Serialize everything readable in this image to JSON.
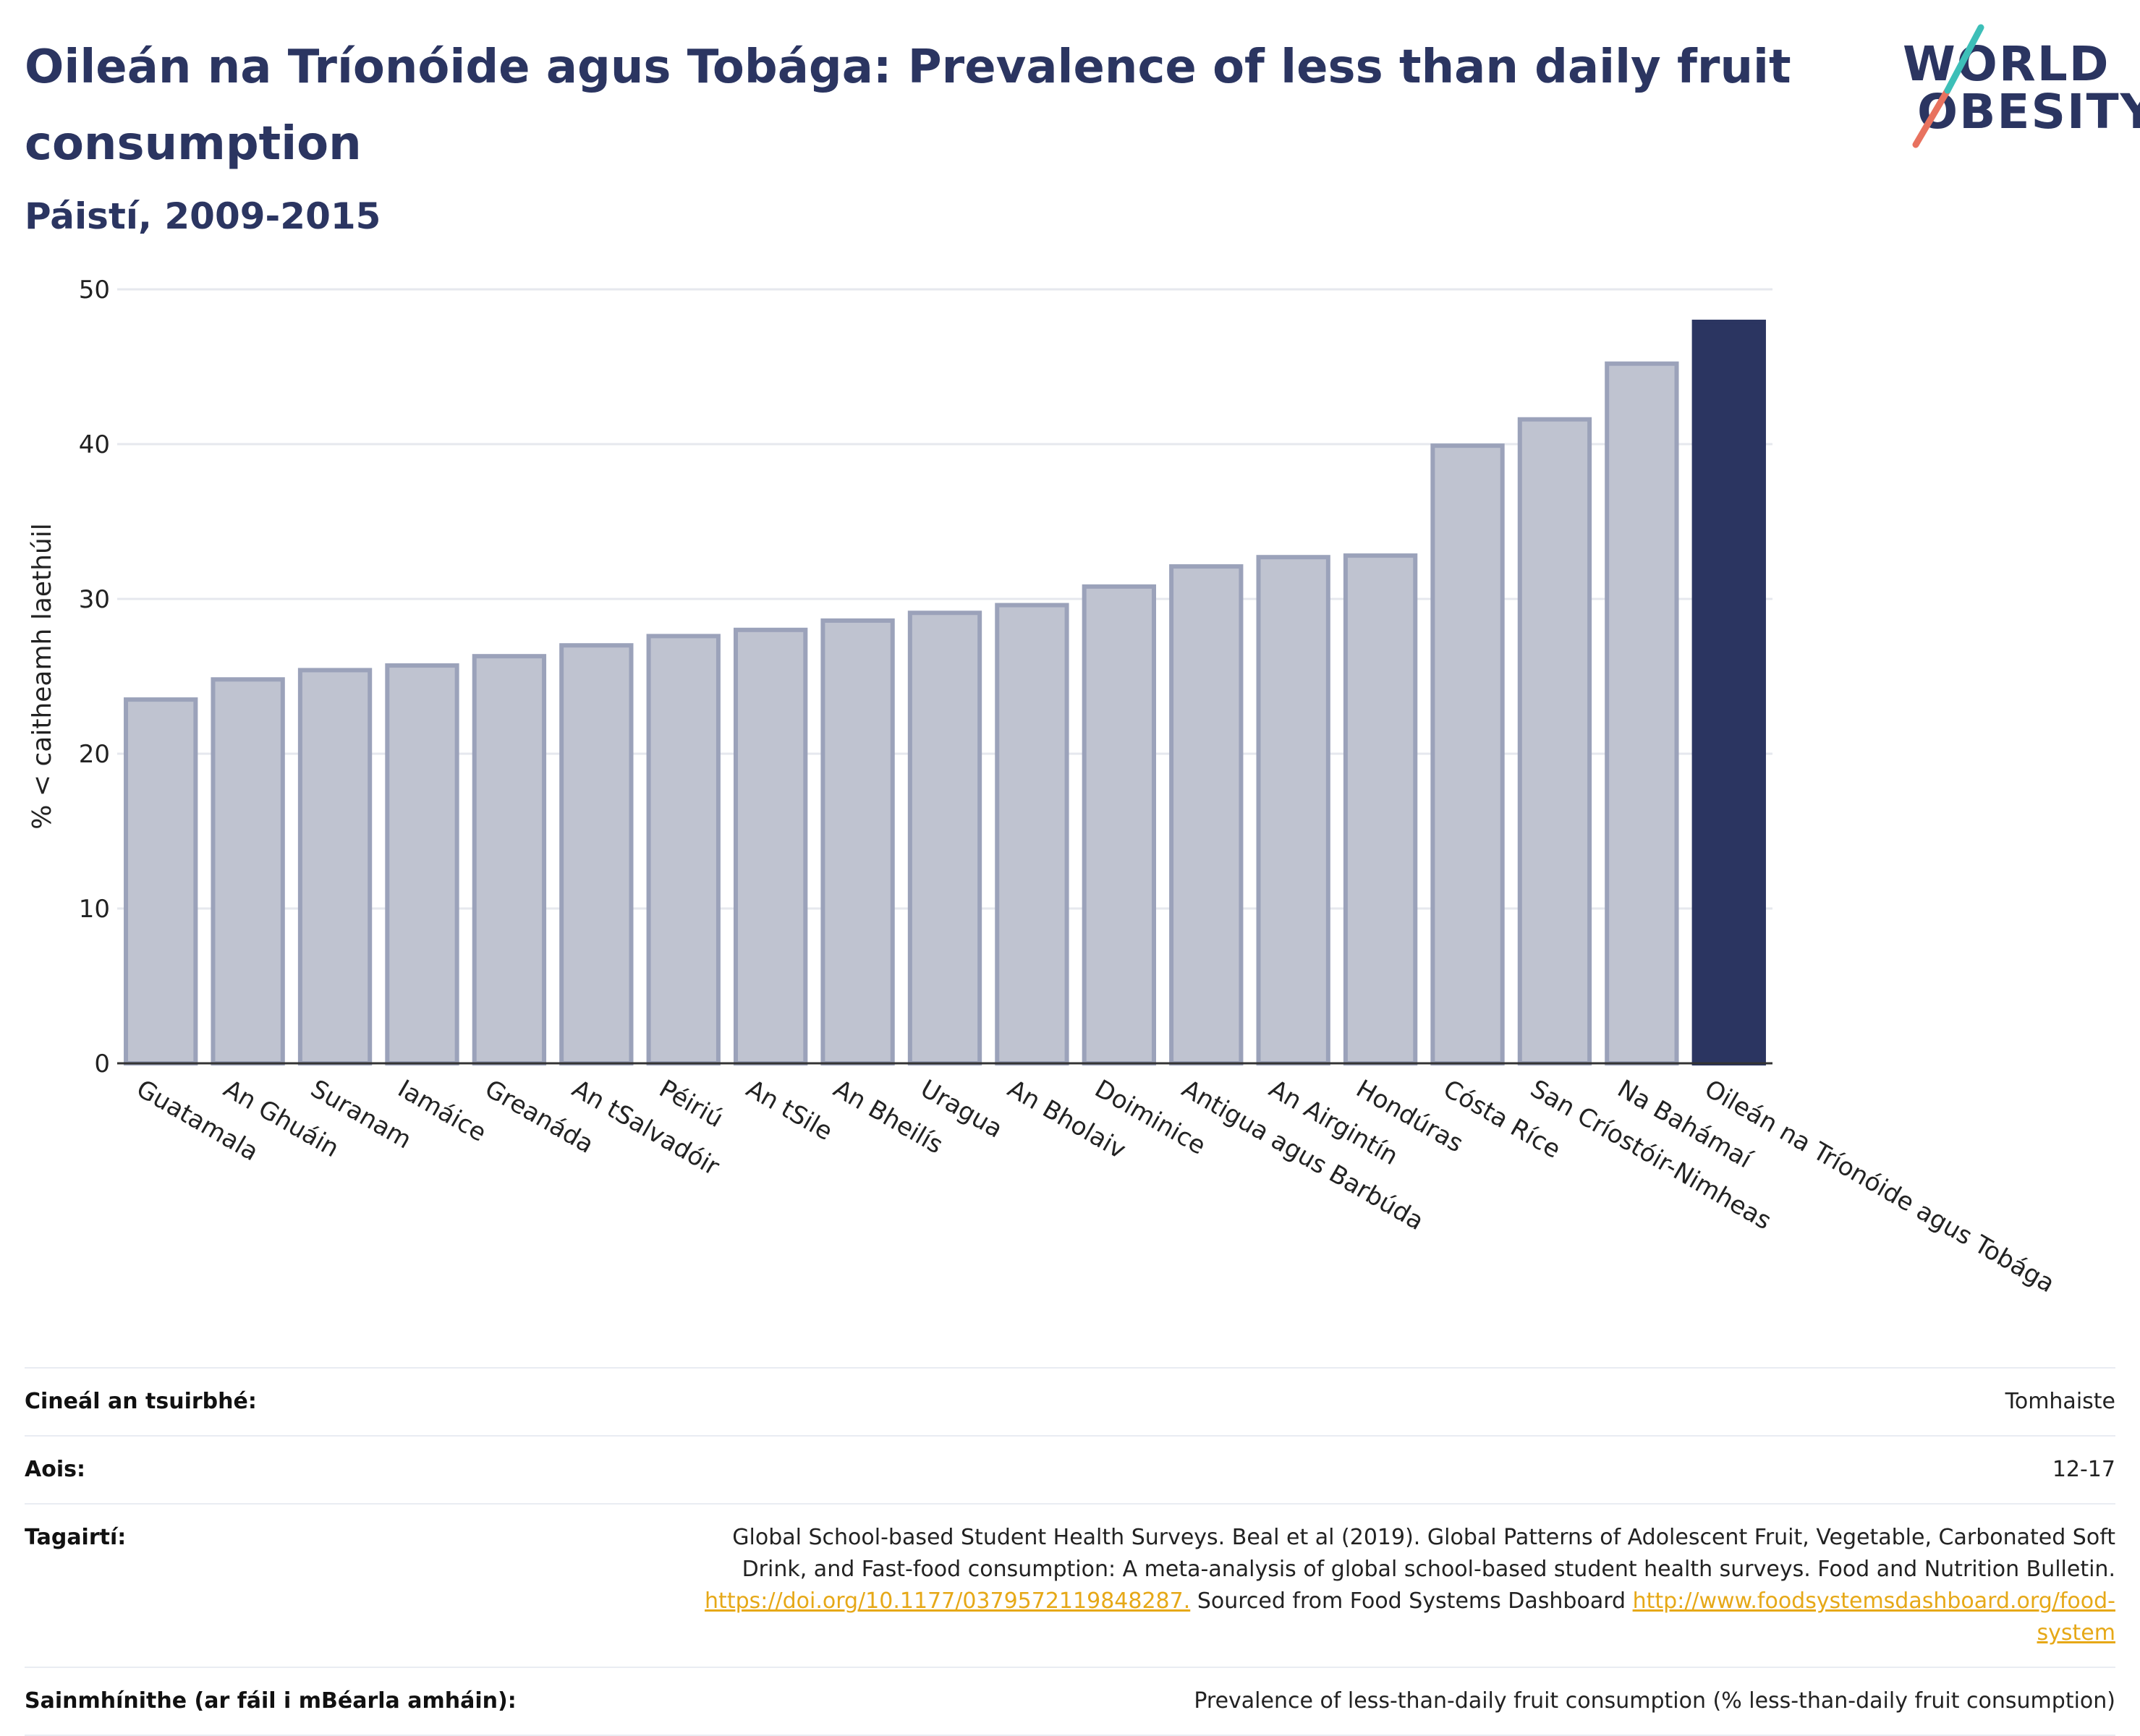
{
  "header": {
    "title": "Oileán na Tríonóide agus Tobága: Prevalence of less than daily fruit consumption",
    "subtitle": "Páistí, 2009-2015"
  },
  "logo": {
    "line1": "WORLD",
    "line2": "OBESITY",
    "slash_colors": [
      "#e8725f",
      "#3dbfb8"
    ]
  },
  "chart_data": {
    "type": "bar",
    "ylabel": "% < caitheamh laethúil",
    "ylim": [
      0,
      50
    ],
    "yticks": [
      0,
      10,
      20,
      30,
      40,
      50
    ],
    "grid": true,
    "highlight_index": 18,
    "colors": {
      "bar": "#bfc3d0",
      "bar_edge": "#9ba2ba",
      "highlight": "#2b3561"
    },
    "categories": [
      "Guatamala",
      "An Ghuáin",
      "Suranam",
      "Iamáice",
      "Greanáda",
      "An tSalvadóir",
      "Péiriú",
      "An tSile",
      "An Bheilís",
      "Uragua",
      "An Bholaiv",
      "Doiminice",
      "Antigua agus Barbúda",
      "An Airgintín",
      "Hondúras",
      "Cósta Ríce",
      "San Críostóir-Nimheas",
      "Na Bahámaí",
      "Oileán na Tríonóide agus Tobága"
    ],
    "values": [
      23.5,
      24.8,
      25.4,
      25.7,
      26.3,
      27.0,
      27.6,
      28.0,
      28.6,
      29.1,
      29.6,
      30.8,
      32.1,
      32.7,
      32.8,
      39.9,
      41.6,
      45.2,
      47.9
    ]
  },
  "meta": {
    "survey_type_label": "Cineál an tsuirbhé:",
    "survey_type_value": "Tomhaiste",
    "age_label": "Aois:",
    "age_value": "12-17",
    "references_label": "Tagairtí:",
    "references_text": "Global School-based Student Health Surveys. Beal et al (2019). Global Patterns of Adolescent Fruit, Vegetable, Carbonated Soft Drink, and Fast-food consumption: A meta-analysis of global school-based student health surveys. Food and Nutrition Bulletin.",
    "references_link1": "https://doi.org/10.1177/0379572119848287.",
    "references_mid": "Sourced from Food Systems Dashboard",
    "references_link2": "http://www.foodsystemsdashboard.org/food-system",
    "definitions_label": "Sainmhínithe (ar fáil i mBéarla amháin):",
    "definitions_value": "Prevalence of less-than-daily fruit consumption (% less-than-daily fruit consumption)"
  }
}
